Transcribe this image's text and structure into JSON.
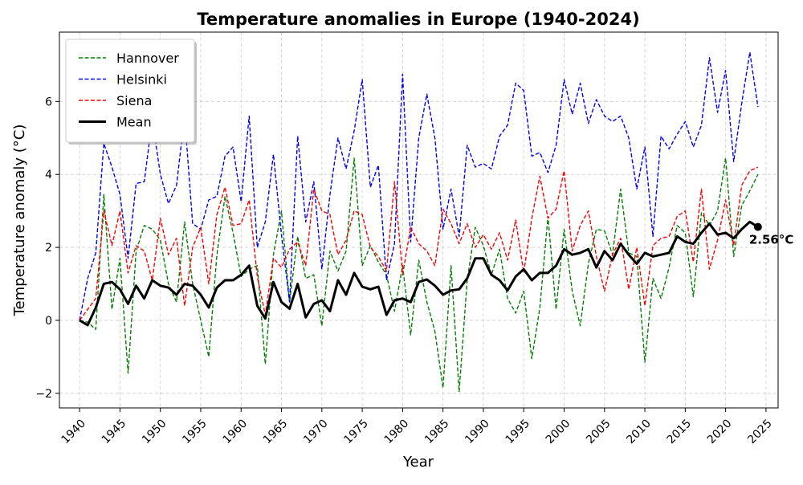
{
  "chart_data": {
    "type": "line",
    "title": "Temperature anomalies in Europe (1940-2024)",
    "xlabel": "Year",
    "ylabel": "Temperature anomaly (°C)",
    "xlim": [
      1937.5,
      2026.5
    ],
    "ylim": [
      -2.4,
      7.9
    ],
    "xticks": [
      1940,
      1945,
      1950,
      1955,
      1960,
      1965,
      1970,
      1975,
      1980,
      1985,
      1990,
      1995,
      2000,
      2005,
      2010,
      2015,
      2020,
      2025
    ],
    "yticks": [
      -2,
      0,
      2,
      4,
      6
    ],
    "ytick_labels": [
      "−2",
      "0",
      "2",
      "4",
      "6"
    ],
    "grid": true,
    "legend_position": "top-left",
    "x": [
      1940,
      1941,
      1942,
      1943,
      1944,
      1945,
      1946,
      1947,
      1948,
      1949,
      1950,
      1951,
      1952,
      1953,
      1954,
      1955,
      1956,
      1957,
      1958,
      1959,
      1960,
      1961,
      1962,
      1963,
      1964,
      1965,
      1966,
      1967,
      1968,
      1969,
      1970,
      1971,
      1972,
      1973,
      1974,
      1975,
      1976,
      1977,
      1978,
      1979,
      1980,
      1981,
      1982,
      1983,
      1984,
      1985,
      1986,
      1987,
      1988,
      1989,
      1990,
      1991,
      1992,
      1993,
      1994,
      1995,
      1996,
      1997,
      1998,
      1999,
      2000,
      2001,
      2002,
      2003,
      2004,
      2005,
      2006,
      2007,
      2008,
      2009,
      2010,
      2011,
      2012,
      2013,
      2014,
      2015,
      2016,
      2017,
      2018,
      2019,
      2020,
      2021,
      2022,
      2023,
      2024
    ],
    "series": [
      {
        "name": "Hannover",
        "color": "#008000",
        "style": "dashed",
        "values": [
          0,
          -0.05,
          -0.25,
          3.45,
          0.3,
          1.7,
          -1.45,
          1.9,
          2.6,
          2.5,
          2.2,
          1.0,
          0.5,
          2.7,
          1.0,
          0.0,
          -1.0,
          1.8,
          3.4,
          2.4,
          1.2,
          1.4,
          1.5,
          -1.2,
          1.8,
          3.0,
          0.5,
          2.3,
          1.15,
          1.25,
          -0.15,
          1.9,
          1.35,
          1.9,
          4.45,
          1.5,
          2.05,
          1.6,
          1.25,
          0.25,
          1.5,
          -0.4,
          1.65,
          0.5,
          -0.3,
          -1.85,
          1.5,
          -1.95,
          1.1,
          2.55,
          2.05,
          1.25,
          1.95,
          0.6,
          0.2,
          0.8,
          -1.05,
          0.35,
          2.85,
          0.3,
          2.5,
          0.8,
          -0.15,
          1.55,
          2.5,
          2.45,
          1.8,
          3.6,
          1.85,
          1.75,
          -1.15,
          1.15,
          0.6,
          1.45,
          2.6,
          2.4,
          0.65,
          2.95,
          2.6,
          3.0,
          4.45,
          1.75,
          3.15,
          3.55,
          4.0
        ]
      },
      {
        "name": "Helsinki",
        "color": "#0000ff",
        "style": "dashed",
        "values": [
          0,
          1.15,
          1.85,
          4.85,
          4.2,
          3.45,
          1.7,
          3.75,
          3.8,
          5.5,
          4.0,
          3.2,
          3.7,
          5.6,
          2.65,
          2.5,
          3.3,
          3.4,
          4.5,
          4.75,
          3.25,
          5.6,
          2.0,
          2.7,
          4.55,
          2.35,
          0.5,
          5.05,
          2.7,
          3.8,
          1.4,
          3.45,
          5.0,
          4.15,
          5.2,
          6.6,
          3.65,
          4.25,
          1.1,
          2.1,
          6.75,
          2.15,
          5.0,
          6.2,
          5.0,
          2.5,
          3.6,
          2.3,
          4.8,
          4.2,
          4.3,
          4.15,
          5.05,
          5.35,
          6.5,
          6.3,
          4.5,
          4.6,
          4.05,
          4.8,
          6.6,
          5.65,
          6.5,
          5.4,
          6.05,
          5.6,
          5.45,
          5.6,
          5.0,
          3.6,
          4.75,
          2.3,
          5.05,
          4.7,
          5.1,
          5.45,
          4.75,
          5.35,
          7.2,
          5.7,
          6.85,
          4.35,
          5.95,
          7.35,
          5.85
        ]
      },
      {
        "name": "Siena",
        "color": "#ff0000",
        "style": "dashed",
        "values": [
          0,
          0.3,
          0.6,
          3.0,
          2.05,
          3.0,
          1.3,
          2.05,
          1.9,
          1.1,
          2.8,
          1.8,
          2.25,
          0.4,
          2.0,
          2.55,
          1.0,
          2.9,
          3.65,
          2.6,
          2.65,
          3.3,
          1.2,
          0.15,
          1.7,
          1.45,
          1.95,
          2.15,
          1.5,
          3.6,
          3.0,
          2.9,
          1.8,
          2.2,
          3.0,
          2.9,
          2.0,
          1.75,
          1.35,
          3.8,
          1.25,
          2.55,
          2.1,
          1.9,
          1.5,
          3.05,
          2.65,
          2.1,
          2.65,
          2.0,
          2.35,
          1.95,
          2.4,
          1.65,
          2.75,
          1.3,
          2.8,
          3.95,
          2.8,
          3.05,
          4.1,
          1.9,
          2.6,
          3.0,
          1.75,
          0.8,
          1.8,
          2.25,
          0.85,
          2.0,
          0.4,
          2.05,
          2.25,
          2.3,
          2.85,
          3.0,
          1.6,
          3.6,
          1.4,
          2.2,
          3.3,
          2.05,
          3.7,
          4.1,
          4.2
        ]
      },
      {
        "name": "Mean",
        "color": "#000000",
        "style": "solid",
        "values": [
          0,
          -0.13,
          0.35,
          1.0,
          1.05,
          0.85,
          0.45,
          0.95,
          0.6,
          1.1,
          0.95,
          0.9,
          0.7,
          1.0,
          0.95,
          0.7,
          0.35,
          0.9,
          1.1,
          1.1,
          1.25,
          1.5,
          0.4,
          0.05,
          1.05,
          0.5,
          0.32,
          1.0,
          0.08,
          0.45,
          0.55,
          0.25,
          1.1,
          0.7,
          1.3,
          0.92,
          0.85,
          0.92,
          0.15,
          0.55,
          0.6,
          0.5,
          1.05,
          1.12,
          0.95,
          0.7,
          0.82,
          0.85,
          1.15,
          1.7,
          1.7,
          1.25,
          1.1,
          0.82,
          1.2,
          1.4,
          1.1,
          1.3,
          1.3,
          1.5,
          1.95,
          1.8,
          1.85,
          1.95,
          1.45,
          1.9,
          1.65,
          2.1,
          1.8,
          1.55,
          1.85,
          1.75,
          1.8,
          1.85,
          2.3,
          2.15,
          2.1,
          2.4,
          2.65,
          2.35,
          2.4,
          2.25,
          2.5,
          2.7,
          2.56
        ]
      }
    ],
    "annotation": {
      "text": "2.56°C",
      "x": 2024,
      "y": 2.56
    }
  }
}
